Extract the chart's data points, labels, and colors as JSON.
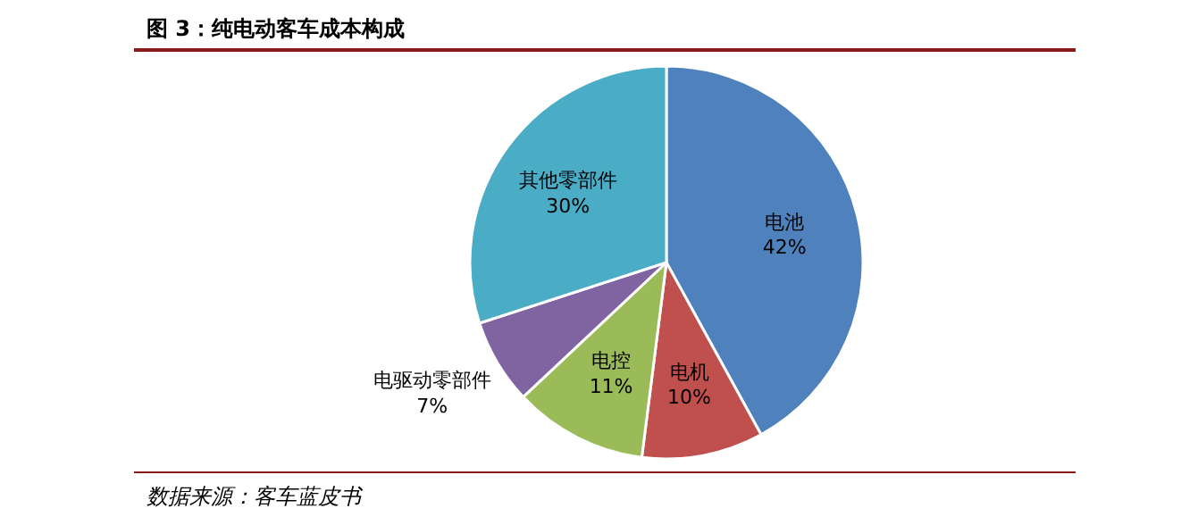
{
  "chart_data": {
    "type": "pie",
    "title": "图 3：纯电动客车成本构成",
    "categories": [
      "电池",
      "电机",
      "电控",
      "电驱动零部件",
      "其他零部件"
    ],
    "values": [
      42,
      10,
      11,
      7,
      30
    ],
    "colors": [
      "#4f81bd",
      "#c0504d",
      "#9bbb59",
      "#8064a2",
      "#4bacc6"
    ],
    "value_labels": [
      "42%",
      "10%",
      "11%",
      "7%",
      "30%"
    ],
    "annotations": [
      "数据来源：客车蓝皮书"
    ]
  }
}
